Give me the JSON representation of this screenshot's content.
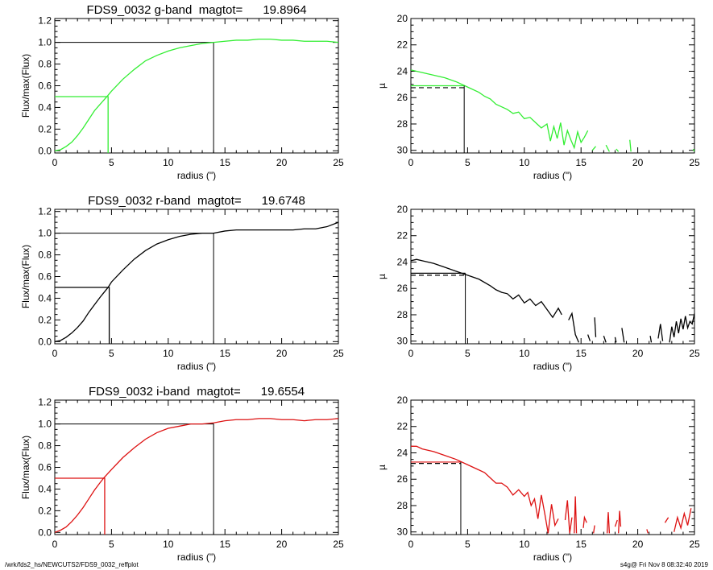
{
  "footer": {
    "left": "/wrk/fds2_hs/NEWCUTS2/FDS9_0032_reffplot",
    "right": "s4g@  Fri Nov  8 08:32:40 2019"
  },
  "colors": {
    "g": "#33ee33",
    "r": "#000000",
    "i": "#dd1111",
    "axis": "#000000"
  },
  "chart_data": [
    {
      "id": "g-flux",
      "type": "line",
      "title": "FDS9_0032 g-band  magtot=      19.8964",
      "xlabel": "radius (\")",
      "ylabel": "Flux/max(Flux)",
      "xlim": [
        0,
        25
      ],
      "ylim": [
        -0.02,
        1.22
      ],
      "xticks": [
        0,
        5,
        10,
        15,
        20,
        25
      ],
      "yticks": [
        0.0,
        0.2,
        0.4,
        0.6,
        0.8,
        1.0,
        1.2
      ],
      "ytick_labels": [
        "0.0",
        "0.2",
        "0.4",
        "0.6",
        "0.8",
        "1.0",
        "1.2"
      ],
      "series": [
        {
          "color": "#33ee33",
          "x": [
            0,
            0.5,
            1,
            1.5,
            2,
            2.5,
            3,
            3.5,
            4,
            4.6,
            5,
            6,
            7,
            8,
            9,
            10,
            11,
            12,
            13,
            14,
            15,
            16,
            17,
            18,
            19,
            20,
            21,
            22,
            23,
            24,
            25
          ],
          "y": [
            0,
            0.01,
            0.04,
            0.08,
            0.14,
            0.21,
            0.29,
            0.37,
            0.43,
            0.5,
            0.55,
            0.66,
            0.75,
            0.83,
            0.88,
            0.92,
            0.95,
            0.97,
            0.99,
            1.0,
            1.01,
            1.02,
            1.02,
            1.03,
            1.03,
            1.02,
            1.02,
            1.01,
            1.01,
            1.01,
            1.0
          ]
        }
      ],
      "half_radius": 4.7,
      "total_radius": 14.0
    },
    {
      "id": "g-mu",
      "type": "line",
      "xlabel": "radius (\")",
      "ylabel": "µ",
      "xlim": [
        0,
        25
      ],
      "ylim": [
        30.2,
        20
      ],
      "xticks": [
        0,
        5,
        10,
        15,
        20,
        25
      ],
      "yticks": [
        20,
        22,
        24,
        26,
        28,
        30
      ],
      "ytick_labels": [
        "20",
        "22",
        "24",
        "26",
        "28",
        "30"
      ],
      "series": [
        {
          "color": "#33ee33",
          "segments": [
            {
              "x": [
                0,
                1,
                2,
                3,
                4,
                5,
                6,
                6.5,
                7,
                7.5,
                8,
                8.5,
                9,
                9.5,
                10,
                10.5,
                11,
                11.5,
                12,
                12.3,
                12.6,
                12.9,
                13.2,
                13.5,
                13.8,
                14.1,
                14.4,
                14.7,
                15.0,
                15.3,
                15.6
              ],
              "y": [
                23.9,
                24.1,
                24.3,
                24.5,
                24.8,
                25.2,
                25.6,
                25.9,
                26.1,
                26.5,
                26.7,
                26.9,
                27.2,
                27.1,
                27.6,
                27.5,
                27.9,
                28.3,
                28.0,
                29.3,
                28.2,
                29.1,
                27.9,
                29.6,
                28.5,
                29.2,
                29.8,
                28.6,
                29.4,
                29.0,
                28.5
              ]
            },
            {
              "x": [
                16.0,
                16.3
              ],
              "y": [
                30.0,
                29.7
              ]
            },
            {
              "x": [
                17.2,
                17.5
              ],
              "y": [
                29.6,
                30.1
              ]
            },
            {
              "x": [
                18.1,
                18.3
              ],
              "y": [
                29.9,
                30.1
              ]
            },
            {
              "x": [
                19.3,
                19.4
              ],
              "y": [
                29.2,
                30.1
              ]
            },
            {
              "x": [
                24.9,
                25.0
              ],
              "y": [
                29.9,
                30.1
              ]
            }
          ]
        }
      ],
      "mu_half": 25.1,
      "mu_dash": 25.25,
      "half_radius": 4.7
    },
    {
      "id": "r-flux",
      "type": "line",
      "title": "FDS9_0032 r-band  magtot=      19.6748",
      "xlabel": "radius (\")",
      "ylabel": "Flux/max(Flux)",
      "xlim": [
        0,
        25
      ],
      "ylim": [
        -0.02,
        1.22
      ],
      "xticks": [
        0,
        5,
        10,
        15,
        20,
        25
      ],
      "yticks": [
        0.0,
        0.2,
        0.4,
        0.6,
        0.8,
        1.0,
        1.2
      ],
      "ytick_labels": [
        "0.0",
        "0.2",
        "0.4",
        "0.6",
        "0.8",
        "1.0",
        "1.2"
      ],
      "series": [
        {
          "color": "#000000",
          "x": [
            0,
            0.5,
            1,
            1.5,
            2,
            2.5,
            3,
            3.5,
            4,
            4.7,
            5,
            6,
            7,
            8,
            9,
            10,
            11,
            12,
            13,
            14,
            15,
            16,
            17,
            18,
            19,
            20,
            21,
            22,
            23,
            24,
            25
          ],
          "y": [
            0,
            0.01,
            0.04,
            0.08,
            0.13,
            0.19,
            0.27,
            0.34,
            0.41,
            0.5,
            0.55,
            0.66,
            0.76,
            0.84,
            0.9,
            0.94,
            0.97,
            0.99,
            1.0,
            1.0,
            1.02,
            1.03,
            1.03,
            1.03,
            1.03,
            1.03,
            1.03,
            1.04,
            1.04,
            1.06,
            1.1
          ]
        }
      ],
      "half_radius": 4.8,
      "total_radius": 14.0
    },
    {
      "id": "r-mu",
      "type": "line",
      "xlabel": "radius (\")",
      "ylabel": "µ",
      "xlim": [
        0,
        25
      ],
      "ylim": [
        30.2,
        20
      ],
      "xticks": [
        0,
        5,
        10,
        15,
        20,
        25
      ],
      "yticks": [
        20,
        22,
        24,
        26,
        28,
        30
      ],
      "ytick_labels": [
        "20",
        "22",
        "24",
        "26",
        "28",
        "30"
      ],
      "series": [
        {
          "color": "#000000",
          "segments": [
            {
              "x": [
                0,
                0.5,
                1,
                2,
                3,
                4,
                5,
                6,
                7,
                7.5,
                8,
                8.5,
                9,
                9.5,
                10,
                10.5,
                11,
                11.5,
                12,
                12.5,
                13,
                13.3
              ],
              "y": [
                23.9,
                23.8,
                23.9,
                24.1,
                24.4,
                24.7,
                25.0,
                25.3,
                25.8,
                26.1,
                26.3,
                26.4,
                26.8,
                26.5,
                27.1,
                26.8,
                27.3,
                27.0,
                27.6,
                28.2,
                27.5,
                28.0
              ]
            },
            {
              "x": [
                13.9,
                14.2,
                14.5,
                14.8
              ],
              "y": [
                28.4,
                27.9,
                29.5,
                30.1
              ]
            },
            {
              "x": [
                15.6,
                15.8
              ],
              "y": [
                29.5,
                30.0
              ]
            },
            {
              "x": [
                16.2,
                16.3
              ],
              "y": [
                28.2,
                29.7
              ]
            },
            {
              "x": [
                17.0,
                17.2
              ],
              "y": [
                29.6,
                30.1
              ]
            },
            {
              "x": [
                18.0,
                18.1
              ],
              "y": [
                29.7,
                30.1
              ]
            },
            {
              "x": [
                18.6,
                18.8
              ],
              "y": [
                29.0,
                30.1
              ]
            },
            {
              "x": [
                21.1,
                21.2
              ],
              "y": [
                29.6,
                30.1
              ]
            },
            {
              "x": [
                21.8,
                22.0,
                22.2
              ],
              "y": [
                29.8,
                28.7,
                30.0
              ]
            },
            {
              "x": [
                22.8,
                23.0,
                23.2,
                23.4,
                23.6,
                23.8,
                24.0,
                24.2,
                24.4,
                24.6,
                24.8,
                25.0
              ],
              "y": [
                30.1,
                28.9,
                29.7,
                28.5,
                29.4,
                28.3,
                29.1,
                28.1,
                29.0,
                28.5,
                28.7,
                27.9
              ]
            }
          ]
        }
      ],
      "mu_half": 24.85,
      "mu_dash": 25.0,
      "half_radius": 4.8
    },
    {
      "id": "i-flux",
      "type": "line",
      "title": "FDS9_0032 i-band  magtot=      19.6554",
      "xlabel": "radius (\")",
      "ylabel": "Flux/max(Flux)",
      "xlim": [
        0,
        25
      ],
      "ylim": [
        -0.02,
        1.22
      ],
      "xticks": [
        0,
        5,
        10,
        15,
        20,
        25
      ],
      "yticks": [
        0.0,
        0.2,
        0.4,
        0.6,
        0.8,
        1.0,
        1.2
      ],
      "ytick_labels": [
        "0.0",
        "0.2",
        "0.4",
        "0.6",
        "0.8",
        "1.0",
        "1.2"
      ],
      "series": [
        {
          "color": "#dd1111",
          "x": [
            0,
            0.5,
            1,
            1.5,
            2,
            2.5,
            3,
            3.5,
            4,
            4.3,
            5,
            6,
            7,
            8,
            9,
            10,
            11,
            12,
            13,
            14,
            15,
            16,
            17,
            18,
            19,
            20,
            21,
            22,
            23,
            24,
            25
          ],
          "y": [
            0,
            0.02,
            0.05,
            0.1,
            0.16,
            0.23,
            0.31,
            0.39,
            0.46,
            0.5,
            0.58,
            0.69,
            0.78,
            0.86,
            0.92,
            0.96,
            0.98,
            1.0,
            1.0,
            1.01,
            1.03,
            1.04,
            1.04,
            1.05,
            1.05,
            1.04,
            1.04,
            1.03,
            1.04,
            1.04,
            1.05
          ]
        }
      ],
      "half_radius": 4.4,
      "total_radius": 14.0
    },
    {
      "id": "i-mu",
      "type": "line",
      "xlabel": "radius (\")",
      "ylabel": "µ",
      "xlim": [
        0,
        25
      ],
      "ylim": [
        30.2,
        20
      ],
      "xticks": [
        0,
        5,
        10,
        15,
        20,
        25
      ],
      "yticks": [
        20,
        22,
        24,
        26,
        28,
        30
      ],
      "ytick_labels": [
        "20",
        "22",
        "24",
        "26",
        "28",
        "30"
      ],
      "series": [
        {
          "color": "#dd1111",
          "segments": [
            {
              "x": [
                0,
                0.5,
                1,
                2,
                3,
                4,
                5,
                5.5,
                6,
                6.5,
                7,
                7.5,
                8,
                8.5,
                9,
                9.5,
                10,
                10.3,
                10.6,
                10.9,
                11.2,
                11.5,
                11.8,
                12.1,
                12.4,
                12.7,
                13.0
              ],
              "y": [
                23.5,
                23.5,
                23.7,
                23.9,
                24.2,
                24.5,
                24.9,
                25.1,
                25.3,
                25.5,
                25.9,
                26.3,
                26.3,
                26.6,
                27.2,
                26.8,
                27.3,
                27.0,
                28.0,
                27.5,
                29.0,
                27.2,
                28.6,
                30.1,
                27.9,
                29.5,
                29.0
              ]
            },
            {
              "x": [
                13.6,
                13.8,
                14.0,
                14.2
              ],
              "y": [
                29.1,
                27.6,
                30.1,
                28.9
              ]
            },
            {
              "x": [
                14.4,
                14.5,
                14.6
              ],
              "y": [
                30.1,
                27.3,
                30.1
              ]
            },
            {
              "x": [
                15.2,
                15.3,
                15.5
              ],
              "y": [
                29.7,
                28.9,
                29.3
              ]
            },
            {
              "x": [
                16.1,
                16.2
              ],
              "y": [
                30.1,
                29.5
              ]
            },
            {
              "x": [
                17.3,
                17.4,
                17.5
              ],
              "y": [
                30.1,
                28.5,
                30.1
              ]
            },
            {
              "x": [
                18.0,
                18.2
              ],
              "y": [
                29.6,
                29.1
              ]
            },
            {
              "x": [
                18.3,
                18.4,
                18.5
              ],
              "y": [
                30.1,
                28.4,
                29.6
              ]
            },
            {
              "x": [
                20.8,
                20.9
              ],
              "y": [
                29.8,
                30.1
              ]
            },
            {
              "x": [
                22.4,
                22.7
              ],
              "y": [
                29.3,
                28.9
              ]
            },
            {
              "x": [
                23.2,
                23.5,
                23.8,
                24.1,
                24.4,
                24.7
              ],
              "y": [
                30.0,
                28.9,
                29.7,
                28.6,
                29.5,
                28.2
              ]
            }
          ]
        }
      ],
      "mu_half": 24.7,
      "mu_dash": 24.8,
      "half_radius": 4.4
    }
  ]
}
